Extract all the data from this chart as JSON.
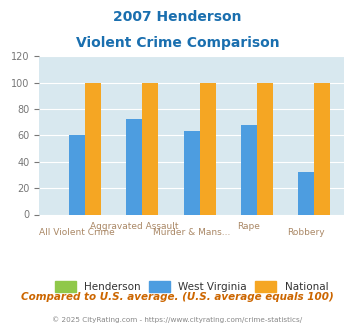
{
  "title_line1": "2007 Henderson",
  "title_line2": "Violent Crime Comparison",
  "categories": [
    "All Violent Crime",
    "Aggravated Assault",
    "Murder & Mans...",
    "Rape",
    "Robbery"
  ],
  "series": {
    "Henderson": [
      0,
      0,
      0,
      0,
      0
    ],
    "West Virginia": [
      60,
      72,
      63,
      68,
      32
    ],
    "National": [
      100,
      100,
      100,
      100,
      100
    ]
  },
  "colors": {
    "Henderson": "#90c84a",
    "West Virginia": "#4d9de0",
    "National": "#f5a623"
  },
  "ylim": [
    0,
    120
  ],
  "yticks": [
    0,
    20,
    40,
    60,
    80,
    100,
    120
  ],
  "plot_bg_color": "#d8e8ef",
  "title_color": "#1a6faf",
  "footer_text": "Compared to U.S. average. (U.S. average equals 100)",
  "copyright_text": "© 2025 CityRating.com - https://www.cityrating.com/crime-statistics/",
  "footer_color": "#cc6600",
  "copyright_color": "#888888",
  "bar_width": 0.28
}
